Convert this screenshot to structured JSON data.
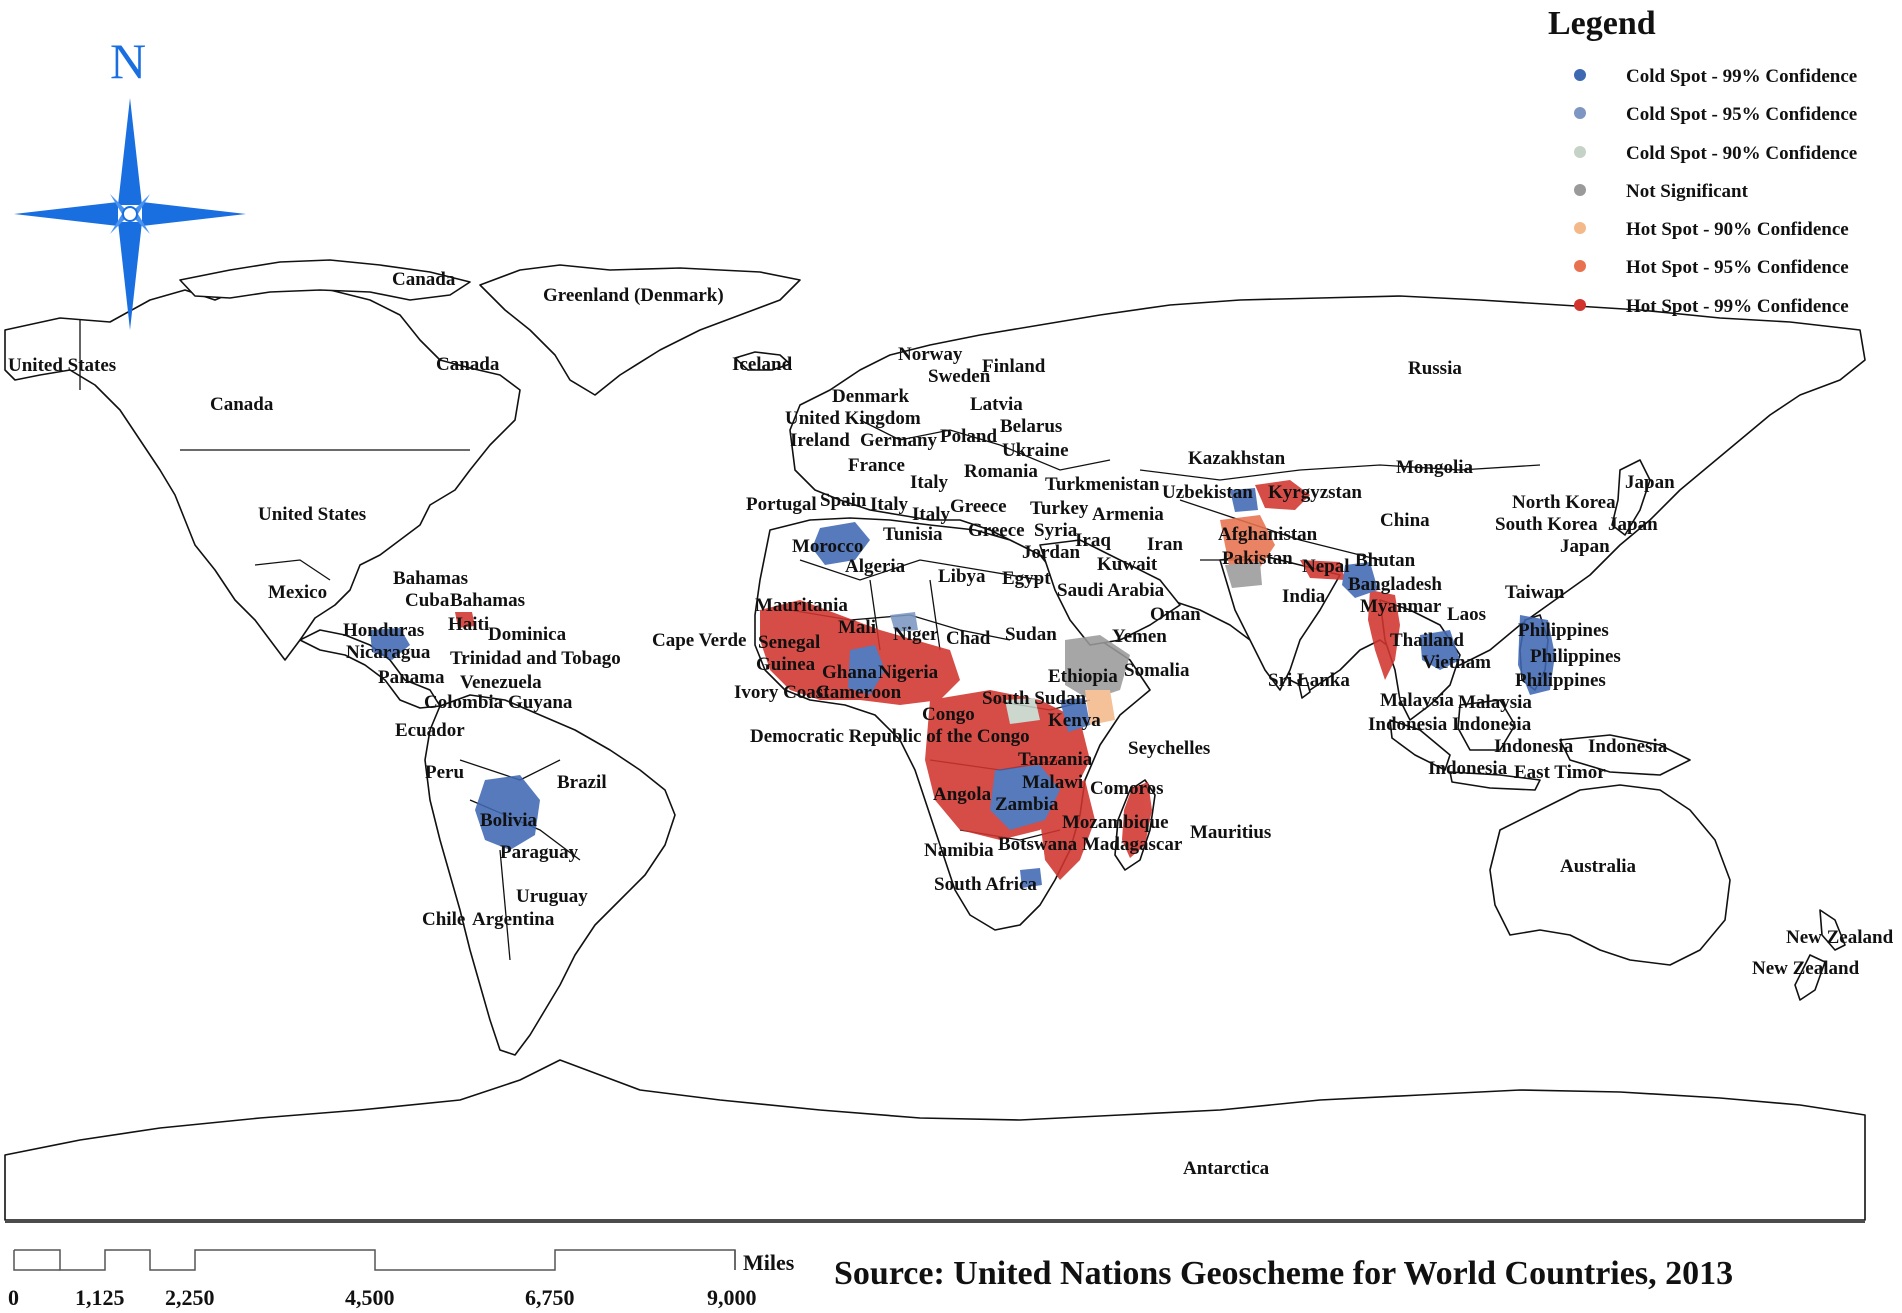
{
  "north_arrow": {
    "letter": "N",
    "color": "#1a6fe0"
  },
  "legend": {
    "title": "Legend",
    "items": [
      {
        "label": "Cold Spot - 99% Confidence",
        "color": "#3f68b3"
      },
      {
        "label": "Cold Spot - 95% Confidence",
        "color": "#7d97c2"
      },
      {
        "label": "Cold Spot - 90% Confidence",
        "color": "#c5d2c8"
      },
      {
        "label": "Not Significant",
        "color": "#9a9a9a"
      },
      {
        "label": "Hot Spot - 90% Confidence",
        "color": "#f3b98b"
      },
      {
        "label": "Hot Spot - 95% Confidence",
        "color": "#e8714f"
      },
      {
        "label": "Hot Spot - 99% Confidence",
        "color": "#d1342d"
      }
    ]
  },
  "country_labels": [
    "Canada",
    "Greenland (Denmark)",
    "United States",
    "Canada",
    "Canada",
    "United States",
    "Iceland",
    "Norway",
    "Sweden",
    "Finland",
    "Russia",
    "Denmark",
    "Latvia",
    "United Kingdom",
    "Belarus",
    "Ireland",
    "Germany",
    "Poland",
    "Ukraine",
    "France",
    "Romania",
    "Kazakhstan",
    "Mongolia",
    "Portugal",
    "Spain",
    "Italy",
    "Italy",
    "Italy",
    "Greece",
    "Greece",
    "Turkey",
    "Turkmenistan",
    "Armenia",
    "Uzbekistan",
    "Kyrgyzstan",
    "Syria",
    "Iraq",
    "Iran",
    "Afghanistan",
    "China",
    "North Korea",
    "South Korea",
    "Japan",
    "Japan",
    "Japan",
    "Tunisia",
    "Morocco",
    "Algeria",
    "Libya",
    "Egypt",
    "Jordan",
    "Kuwait",
    "Saudi Arabia",
    "Pakistan",
    "Nepal",
    "Bhutan",
    "India",
    "Bangladesh",
    "Oman",
    "Myanmar",
    "Taiwan",
    "Laos",
    "Mexico",
    "Bahamas",
    "Cuba",
    "Bahamas",
    "Haiti",
    "Dominica",
    "Mauritania",
    "Mali",
    "Niger",
    "Chad",
    "Sudan",
    "Yemen",
    "Thailand",
    "Philippines",
    "Philippines",
    "Philippines",
    "Vietnam",
    "Honduras",
    "Nicaragua",
    "Trinidad and Tobago",
    "Panama",
    "Venezuela",
    "Cape Verde",
    "Senegal",
    "Guinea",
    "Ghana",
    "Nigeria",
    "Ethiopia",
    "Somalia",
    "Sri Lanka",
    "Colombia",
    "Guyana",
    "Ivory Coast",
    "Cameroon",
    "South Sudan",
    "Malaysia",
    "Malaysia",
    "Indonesia",
    "Indonesia",
    "Indonesia",
    "Indonesia",
    "Indonesia",
    "East Timor",
    "Ecuador",
    "Congo",
    "Kenya",
    "Democratic Republic of the Congo",
    "Seychelles",
    "Peru",
    "Brazil",
    "Tanzania",
    "Malawi",
    "Comoros",
    "Angola",
    "Zambia",
    "Bolivia",
    "Mozambique",
    "Mauritius",
    "Madagascar",
    "Namibia",
    "Botswana",
    "Paraguay",
    "Australia",
    "South Africa",
    "Uruguay",
    "Chile",
    "Argentina",
    "New Zealand",
    "New Zealand",
    "Antarctica"
  ],
  "scale_bar": {
    "unit": "Miles",
    "ticks": [
      "0",
      "1,125",
      "2,250",
      "4,500",
      "6,750",
      "9,000"
    ]
  },
  "source": "Source: United Nations Geoscheme for World Countries, 2013"
}
